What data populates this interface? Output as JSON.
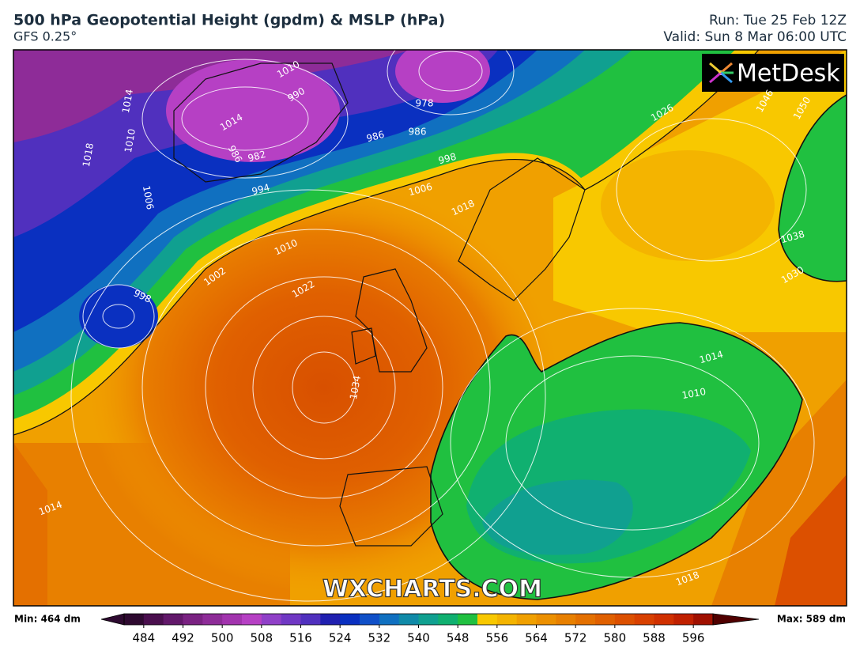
{
  "header": {
    "title": "500 hPa Geopotential Height (gpdm) & MSLP (hPa)",
    "subtitle": "GFS 0.25°",
    "run": "Run: Tue 25 Feb 12Z",
    "valid": "Valid: Sun 8 Mar 06:00 UTC"
  },
  "map": {
    "logo": "MetDesk",
    "watermark": "WXCHARTS.COM",
    "isobar_labels": [
      "1010",
      "1014",
      "990",
      "986",
      "982",
      "978",
      "986",
      "986",
      "998",
      "1006",
      "1018",
      "1026",
      "1014",
      "1010",
      "1018",
      "1006",
      "994",
      "1002",
      "998",
      "1010",
      "1022",
      "1034",
      "1014",
      "1014",
      "1010",
      "1038",
      "1030",
      "1046",
      "1050",
      "1018"
    ]
  },
  "colorbar": {
    "min_label": "Min: 464 dm",
    "max_label": "Max: 589 dm",
    "bounds": [
      480,
      600
    ],
    "ticks": [
      484,
      492,
      500,
      508,
      516,
      524,
      532,
      540,
      548,
      556,
      564,
      572,
      580,
      588,
      596
    ],
    "colors": [
      "#2e0a30",
      "#4a0f4e",
      "#62186a",
      "#7a2282",
      "#8e2c98",
      "#a234ae",
      "#b640c4",
      "#9040c8",
      "#7038c4",
      "#5030be",
      "#2020b0",
      "#0a30c0",
      "#1050c8",
      "#1070c0",
      "#108aa8",
      "#10a090",
      "#10b070",
      "#20c040",
      "#f8c800",
      "#f4b400",
      "#f0a000",
      "#ec9000",
      "#e88000",
      "#e47000",
      "#e06000",
      "#dc5000",
      "#d84000",
      "#d03000",
      "#c02000",
      "#a01000"
    ]
  }
}
